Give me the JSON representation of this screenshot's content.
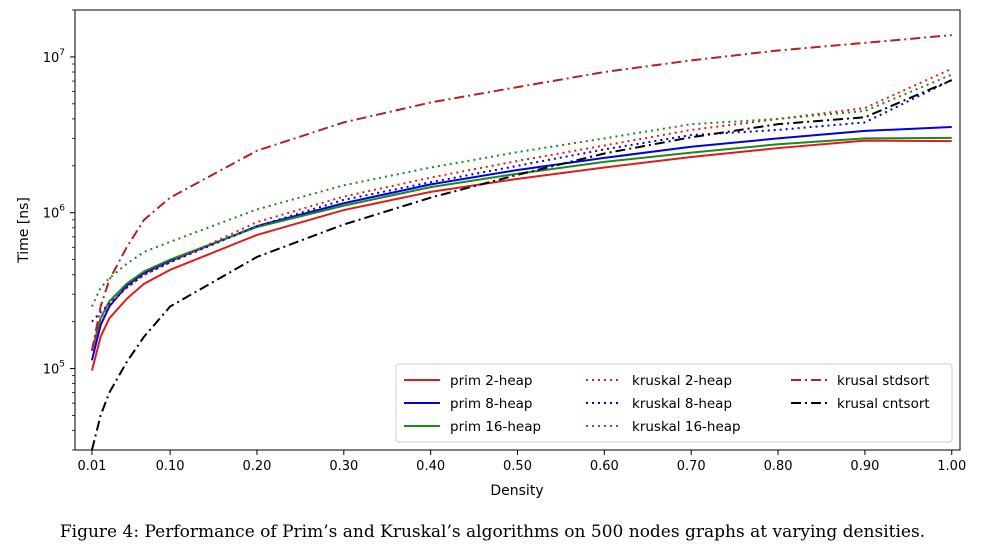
{
  "caption": "Figure 4: Performance of Prim’s and Kruskal’s algorithms on 500 nodes graphs at varying densities.",
  "chart_data": {
    "type": "line",
    "xlabel": "Density",
    "ylabel": "Time [ns]",
    "yscale": "log",
    "xlim": [
      -0.0095,
      1.0095
    ],
    "ylim": [
      30000,
      20000000
    ],
    "grid": false,
    "legend_placement": "lower-right",
    "legend_columns": 3,
    "x_ticks": [
      {
        "value": 0.01,
        "label": "0.01"
      },
      {
        "value": 0.1,
        "label": "0.10"
      },
      {
        "value": 0.2,
        "label": "0.20"
      },
      {
        "value": 0.3,
        "label": "0.30"
      },
      {
        "value": 0.4,
        "label": "0.40"
      },
      {
        "value": 0.5,
        "label": "0.50"
      },
      {
        "value": 0.6,
        "label": "0.60"
      },
      {
        "value": 0.7,
        "label": "0.70"
      },
      {
        "value": 0.8,
        "label": "0.80"
      },
      {
        "value": 0.9,
        "label": "0.90"
      },
      {
        "value": 1.0,
        "label": "1.00"
      }
    ],
    "y_ticks": [
      {
        "value": 100000,
        "base": "10",
        "exp": "5"
      },
      {
        "value": 1000000,
        "base": "10",
        "exp": "6"
      },
      {
        "value": 10000000,
        "base": "10",
        "exp": "7"
      }
    ],
    "x": [
      0.01,
      0.02,
      0.03,
      0.05,
      0.07,
      0.1,
      0.2,
      0.3,
      0.4,
      0.5,
      0.6,
      0.7,
      0.8,
      0.9,
      1.0
    ],
    "series": [
      {
        "name": "prim 2-heap",
        "color": "#e31a1c",
        "dash": "solid",
        "values": [
          97000,
          160000,
          210000,
          280000,
          350000,
          430000,
          720000,
          1040000,
          1360000,
          1650000,
          1950000,
          2280000,
          2600000,
          2900000,
          2880000
        ]
      },
      {
        "name": "prim 8-heap",
        "color": "#0000e6",
        "dash": "solid",
        "values": [
          113000,
          190000,
          250000,
          340000,
          410000,
          490000,
          820000,
          1150000,
          1520000,
          1880000,
          2250000,
          2650000,
          3000000,
          3350000,
          3550000
        ]
      },
      {
        "name": "prim 16-heap",
        "color": "#1a8a1a",
        "dash": "solid",
        "values": [
          130000,
          210000,
          270000,
          350000,
          420000,
          500000,
          810000,
          1110000,
          1460000,
          1780000,
          2120000,
          2430000,
          2750000,
          3000000,
          3020000
        ]
      },
      {
        "name": "kruskal 2-heap",
        "color": "#e31a1c",
        "dash": "dotted",
        "values": [
          130000,
          210000,
          260000,
          330000,
          400000,
          480000,
          870000,
          1270000,
          1680000,
          2150000,
          2700000,
          3400000,
          4000000,
          4700000,
          8400000
        ]
      },
      {
        "name": "kruskal 8-heap",
        "color": "#0000e6",
        "dash": "dotted",
        "values": [
          200000,
          230000,
          260000,
          330000,
          400000,
          480000,
          820000,
          1210000,
          1570000,
          2000000,
          2550000,
          3150000,
          3400000,
          3800000,
          7100000
        ]
      },
      {
        "name": "kruskal 16-heap",
        "color": "#1a8a1a",
        "dash": "dotted",
        "values": [
          250000,
          330000,
          380000,
          470000,
          560000,
          650000,
          1050000,
          1500000,
          1950000,
          2450000,
          3000000,
          3700000,
          4000000,
          4500000,
          7700000
        ]
      },
      {
        "name": "krusal stdsort",
        "color": "#b22222",
        "dash": "dashdot",
        "values": [
          130000,
          250000,
          370000,
          600000,
          900000,
          1250000,
          2500000,
          3800000,
          5100000,
          6400000,
          8000000,
          9500000,
          11000000,
          12300000,
          13800000
        ]
      },
      {
        "name": "krusal cntsort",
        "color": "#000000",
        "dash": "dashdot",
        "values": [
          30000,
          50000,
          70000,
          110000,
          160000,
          250000,
          520000,
          840000,
          1250000,
          1750000,
          2400000,
          3050000,
          3700000,
          4100000,
          7100000
        ]
      }
    ]
  }
}
